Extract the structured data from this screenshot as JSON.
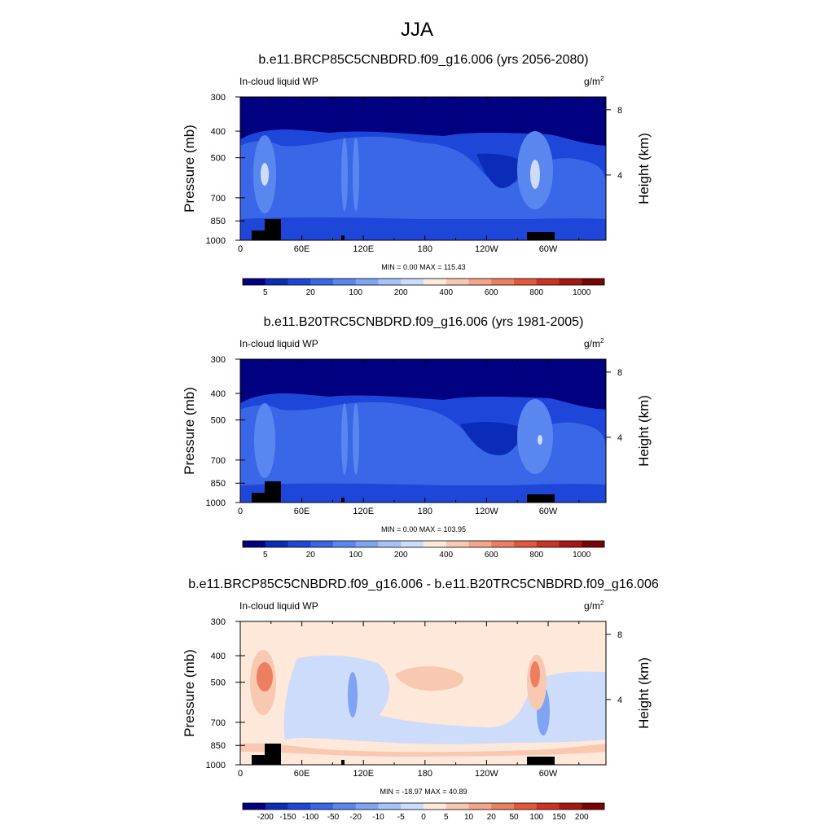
{
  "figure": {
    "title": "JJA"
  },
  "shared": {
    "x_ticks": [
      "0",
      "60E",
      "120E",
      "180",
      "120W",
      "60W"
    ],
    "p_ticks": [
      "300",
      "400",
      "500",
      "700",
      "850",
      "1000"
    ],
    "h_ticks": [
      "8",
      "4"
    ],
    "ylabel_left": "Pressure (mb)",
    "ylabel_right": "Height (km)",
    "var_label": "In-cloud liquid WP",
    "units_label": "g/m",
    "units_sup": "2"
  },
  "colors": {
    "abs_scale": [
      "#000080",
      "#0a2cb8",
      "#1e46d8",
      "#3a66e8",
      "#5a86f0",
      "#7fa4f4",
      "#a6c2f8",
      "#cddcfa",
      "#fde8da",
      "#f9c8b0",
      "#f4a488",
      "#ee7e60",
      "#e4573c",
      "#cc3222",
      "#a81612",
      "#7a0404"
    ],
    "diff_scale": [
      "#000080",
      "#0a2cb8",
      "#1e46d8",
      "#3a66e8",
      "#5a86f0",
      "#7fa4f4",
      "#a6c2f8",
      "#cddcfa",
      "#fde8da",
      "#f9c8b0",
      "#f4a488",
      "#ee7e60",
      "#e4573c",
      "#cc3222",
      "#a81612",
      "#7a0404"
    ]
  },
  "chart_data": [
    {
      "type": "heatmap",
      "title": "b.e11.BRCP85C5CNBDRD.f09_g16.006 (yrs 2056-2080)",
      "variable": "In-cloud liquid WP",
      "units": "g/m2",
      "x_axis": "longitude",
      "xlim": [
        0,
        360
      ],
      "y_axis": "pressure (mb), reversed",
      "ylim": [
        1000,
        300
      ],
      "min_max_text": "MIN =   0.00  MAX = 115.43",
      "min": 0.0,
      "max": 115.43,
      "colorbar_labels": [
        "5",
        "20",
        "100",
        "200",
        "400",
        "600",
        "800",
        "1000"
      ]
    },
    {
      "type": "heatmap",
      "title": "b.e11.B20TRC5CNBDRD.f09_g16.006 (yrs 1981-2005)",
      "variable": "In-cloud liquid WP",
      "units": "g/m2",
      "x_axis": "longitude",
      "xlim": [
        0,
        360
      ],
      "y_axis": "pressure (mb), reversed",
      "ylim": [
        1000,
        300
      ],
      "min_max_text": "MIN =   0.00  MAX = 103.95",
      "min": 0.0,
      "max": 103.95,
      "colorbar_labels": [
        "5",
        "20",
        "100",
        "200",
        "400",
        "600",
        "800",
        "1000"
      ]
    },
    {
      "type": "heatmap",
      "title": "b.e11.BRCP85C5CNBDRD.f09_g16.006 - b.e11.B20TRC5CNBDRD.f09_g16.006",
      "variable": "In-cloud liquid WP",
      "units": "g/m2",
      "x_axis": "longitude",
      "xlim": [
        0,
        360
      ],
      "y_axis": "pressure (mb), reversed",
      "ylim": [
        1000,
        300
      ],
      "min_max_text": "MIN = -18.97  MAX =  40.89",
      "min": -18.97,
      "max": 40.89,
      "colorbar_labels": [
        "-200",
        "-150",
        "-100",
        "-50",
        "-20",
        "-10",
        "-5",
        "0",
        "5",
        "10",
        "20",
        "50",
        "100",
        "150",
        "200"
      ]
    }
  ]
}
